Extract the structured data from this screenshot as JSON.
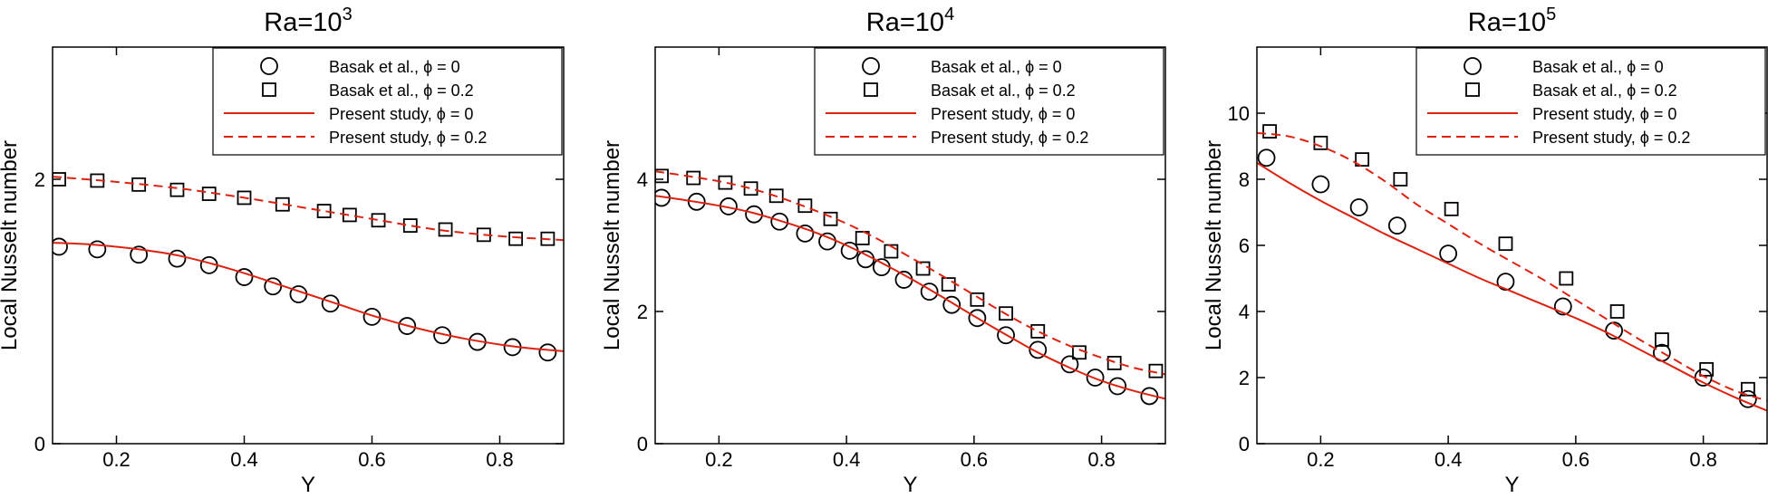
{
  "chart_data": [
    {
      "type": "line",
      "title": "Ra=10",
      "title_sup": "3",
      "xlabel": "Y",
      "ylabel": "Local Nusselt number",
      "xlim": [
        0.1,
        0.9
      ],
      "ylim": [
        0,
        3
      ],
      "xticks": [
        0.2,
        0.4,
        0.6,
        0.8
      ],
      "xtick_labels": [
        "0.2",
        "0.4",
        "0.6",
        "0.8"
      ],
      "yticks": [
        0,
        2
      ],
      "ytick_labels": [
        "0",
        "2"
      ],
      "legend": {
        "position": "top-right",
        "entries": [
          {
            "prefix": "Basak et al.,",
            "symbol": "ϕ",
            "suffix": "= 0",
            "style": "circle"
          },
          {
            "prefix": "Basak et al.,",
            "symbol": "ϕ",
            "suffix": "= 0.2",
            "style": "square"
          },
          {
            "prefix": "Present study,",
            "symbol": "ϕ",
            "suffix": "= 0",
            "style": "solid"
          },
          {
            "prefix": "Present study,",
            "symbol": "ϕ",
            "suffix": "= 0.2",
            "style": "dashed"
          }
        ]
      },
      "series": [
        {
          "name": "Basak et al., ϕ = 0",
          "style": "circle",
          "x": [
            0.11,
            0.17,
            0.235,
            0.295,
            0.345,
            0.4,
            0.445,
            0.485,
            0.535,
            0.6,
            0.655,
            0.71,
            0.765,
            0.82,
            0.875
          ],
          "y": [
            1.49,
            1.47,
            1.43,
            1.4,
            1.35,
            1.26,
            1.19,
            1.13,
            1.06,
            0.96,
            0.89,
            0.82,
            0.77,
            0.73,
            0.69
          ]
        },
        {
          "name": "Basak et al., ϕ = 0.2",
          "style": "square",
          "x": [
            0.11,
            0.17,
            0.235,
            0.295,
            0.345,
            0.4,
            0.46,
            0.525,
            0.565,
            0.61,
            0.66,
            0.715,
            0.775,
            0.825,
            0.875
          ],
          "y": [
            2.0,
            1.99,
            1.96,
            1.92,
            1.89,
            1.86,
            1.81,
            1.76,
            1.73,
            1.69,
            1.65,
            1.62,
            1.58,
            1.55,
            1.55
          ]
        },
        {
          "name": "Present study, ϕ = 0",
          "style": "solid",
          "x": [
            0.1,
            0.15,
            0.2,
            0.25,
            0.3,
            0.35,
            0.4,
            0.45,
            0.5,
            0.55,
            0.6,
            0.65,
            0.7,
            0.75,
            0.8,
            0.85,
            0.9
          ],
          "y": [
            1.52,
            1.51,
            1.49,
            1.46,
            1.42,
            1.36,
            1.29,
            1.21,
            1.13,
            1.05,
            0.97,
            0.9,
            0.84,
            0.79,
            0.75,
            0.72,
            0.7
          ]
        },
        {
          "name": "Present study, ϕ = 0.2",
          "style": "dashed",
          "x": [
            0.1,
            0.2,
            0.3,
            0.4,
            0.5,
            0.6,
            0.7,
            0.8,
            0.9
          ],
          "y": [
            2.02,
            1.98,
            1.93,
            1.86,
            1.78,
            1.7,
            1.62,
            1.57,
            1.54
          ]
        }
      ]
    },
    {
      "type": "line",
      "title": "Ra=10",
      "title_sup": "4",
      "xlabel": "Y",
      "ylabel": "Local Nusselt number",
      "xlim": [
        0.1,
        0.9
      ],
      "ylim": [
        0,
        6
      ],
      "xticks": [
        0.2,
        0.4,
        0.6,
        0.8
      ],
      "xtick_labels": [
        "0.2",
        "0.4",
        "0.6",
        "0.8"
      ],
      "yticks": [
        0,
        2,
        4
      ],
      "ytick_labels": [
        "0",
        "2",
        "4"
      ],
      "legend": {
        "position": "top-right",
        "entries": [
          {
            "prefix": "Basak et al.,",
            "symbol": "ϕ",
            "suffix": "= 0",
            "style": "circle"
          },
          {
            "prefix": "Basak et al.,",
            "symbol": "ϕ",
            "suffix": "= 0.2",
            "style": "square"
          },
          {
            "prefix": "Present study,",
            "symbol": "ϕ",
            "suffix": "= 0",
            "style": "solid"
          },
          {
            "prefix": "Present study,",
            "symbol": "ϕ",
            "suffix": "= 0.2",
            "style": "dashed"
          }
        ]
      },
      "series": [
        {
          "name": "Basak et al., ϕ = 0",
          "style": "circle",
          "x": [
            0.11,
            0.165,
            0.215,
            0.255,
            0.295,
            0.335,
            0.37,
            0.405,
            0.43,
            0.455,
            0.49,
            0.53,
            0.565,
            0.605,
            0.65,
            0.7,
            0.75,
            0.79,
            0.825,
            0.875
          ],
          "y": [
            3.72,
            3.66,
            3.59,
            3.47,
            3.36,
            3.18,
            3.06,
            2.92,
            2.79,
            2.67,
            2.48,
            2.3,
            2.1,
            1.9,
            1.64,
            1.42,
            1.2,
            1.0,
            0.87,
            0.72
          ]
        },
        {
          "name": "Basak et al., ϕ = 0.2",
          "style": "square",
          "x": [
            0.11,
            0.16,
            0.21,
            0.25,
            0.29,
            0.335,
            0.375,
            0.425,
            0.47,
            0.52,
            0.56,
            0.605,
            0.65,
            0.7,
            0.765,
            0.82,
            0.885
          ],
          "y": [
            4.05,
            4.02,
            3.95,
            3.86,
            3.75,
            3.6,
            3.4,
            3.11,
            2.91,
            2.65,
            2.41,
            2.18,
            1.97,
            1.7,
            1.38,
            1.22,
            1.1
          ]
        },
        {
          "name": "Present study, ϕ = 0",
          "style": "solid",
          "x": [
            0.1,
            0.15,
            0.2,
            0.25,
            0.3,
            0.35,
            0.4,
            0.45,
            0.5,
            0.55,
            0.6,
            0.65,
            0.7,
            0.75,
            0.8,
            0.85,
            0.9
          ],
          "y": [
            3.75,
            3.68,
            3.6,
            3.5,
            3.36,
            3.2,
            3.0,
            2.76,
            2.5,
            2.22,
            1.93,
            1.65,
            1.38,
            1.15,
            0.95,
            0.8,
            0.68
          ]
        },
        {
          "name": "Present study, ϕ = 0.2",
          "style": "dashed",
          "x": [
            0.1,
            0.15,
            0.2,
            0.25,
            0.3,
            0.35,
            0.4,
            0.45,
            0.5,
            0.55,
            0.6,
            0.65,
            0.7,
            0.75,
            0.8,
            0.85,
            0.9
          ],
          "y": [
            4.12,
            4.05,
            3.97,
            3.86,
            3.71,
            3.53,
            3.33,
            3.09,
            2.82,
            2.54,
            2.25,
            1.96,
            1.7,
            1.48,
            1.3,
            1.15,
            1.05
          ]
        }
      ]
    },
    {
      "type": "line",
      "title": "Ra=10",
      "title_sup": "5",
      "xlabel": "Y",
      "ylabel": "Local Nusselt number",
      "xlim": [
        0.1,
        0.9
      ],
      "ylim": [
        0,
        12
      ],
      "xticks": [
        0.2,
        0.4,
        0.6,
        0.8
      ],
      "xtick_labels": [
        "0.2",
        "0.4",
        "0.6",
        "0.8"
      ],
      "yticks": [
        0,
        2,
        4,
        6,
        8,
        10
      ],
      "ytick_labels": [
        "0",
        "2",
        "4",
        "6",
        "8",
        "10"
      ],
      "legend": {
        "position": "top-right",
        "entries": [
          {
            "prefix": "Basak et al.,",
            "symbol": "ϕ",
            "suffix": "= 0",
            "style": "circle"
          },
          {
            "prefix": "Basak et al.,",
            "symbol": "ϕ",
            "suffix": "= 0.2",
            "style": "square"
          },
          {
            "prefix": "Present study,",
            "symbol": "ϕ",
            "suffix": "= 0",
            "style": "solid"
          },
          {
            "prefix": "Present study,",
            "symbol": "ϕ",
            "suffix": "= 0.2",
            "style": "dashed"
          }
        ]
      },
      "series": [
        {
          "name": "Basak et al., ϕ = 0",
          "style": "circle",
          "x": [
            0.115,
            0.2,
            0.26,
            0.32,
            0.4,
            0.49,
            0.58,
            0.66,
            0.735,
            0.8,
            0.87
          ],
          "y": [
            8.65,
            7.85,
            7.15,
            6.6,
            5.75,
            4.9,
            4.15,
            3.42,
            2.75,
            2.0,
            1.35
          ]
        },
        {
          "name": "Basak et al., ϕ = 0.2",
          "style": "square",
          "x": [
            0.12,
            0.2,
            0.265,
            0.325,
            0.405,
            0.49,
            0.585,
            0.665,
            0.735,
            0.805,
            0.87
          ],
          "y": [
            9.45,
            9.1,
            8.6,
            8.0,
            7.1,
            6.05,
            5.0,
            4.0,
            3.15,
            2.25,
            1.65
          ]
        },
        {
          "name": "Present study, ϕ = 0",
          "style": "solid",
          "x": [
            0.1,
            0.15,
            0.2,
            0.25,
            0.3,
            0.35,
            0.4,
            0.45,
            0.5,
            0.55,
            0.6,
            0.65,
            0.7,
            0.75,
            0.8,
            0.85,
            0.9
          ],
          "y": [
            8.5,
            7.9,
            7.35,
            6.85,
            6.35,
            5.9,
            5.45,
            5.0,
            4.6,
            4.2,
            3.8,
            3.35,
            2.85,
            2.35,
            1.85,
            1.4,
            1.0
          ]
        },
        {
          "name": "Present study, ϕ = 0.2",
          "style": "dashed",
          "x": [
            0.1,
            0.15,
            0.2,
            0.25,
            0.3,
            0.35,
            0.4,
            0.45,
            0.5,
            0.55,
            0.6,
            0.65,
            0.7,
            0.75,
            0.8,
            0.85,
            0.9
          ],
          "y": [
            9.4,
            9.3,
            9.0,
            8.55,
            7.95,
            7.25,
            6.65,
            6.05,
            5.5,
            4.95,
            4.35,
            3.75,
            3.15,
            2.6,
            2.05,
            1.6,
            1.3
          ]
        }
      ]
    }
  ]
}
